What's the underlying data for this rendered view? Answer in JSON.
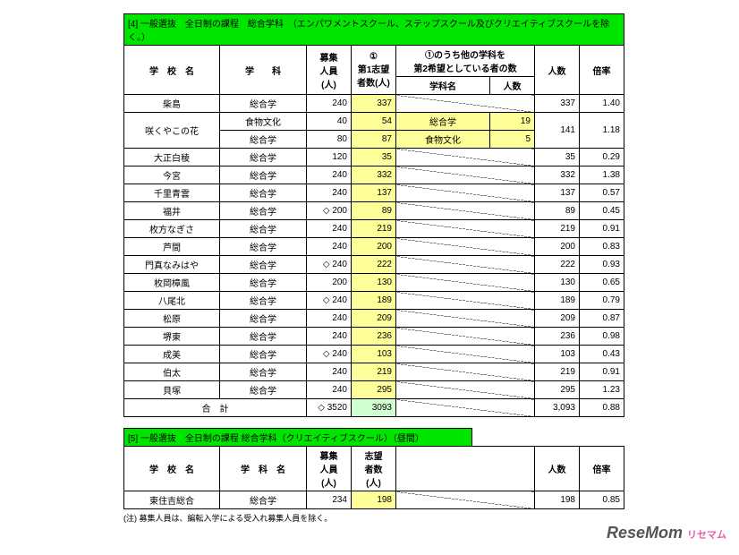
{
  "table4": {
    "title": "[4] 一般選抜　全日制の課程　総合学科　（エンパワメントスクール、ステップスクール及びクリエイティブスクールを除く。）",
    "headers": {
      "school": "学　校　名",
      "dept": "学　　科",
      "capacity": "募集\n人員\n(人)",
      "first": "①\n第1志望\n者数(人)",
      "other_top": "①のうち他の学科を\n第2希望としている者の数",
      "other_dept": "学科名",
      "other_count": "人数",
      "count": "人数",
      "rate": "倍率"
    },
    "rows": [
      {
        "school": "柴島",
        "dept": "総合学",
        "cap": "240",
        "first": "337",
        "od": "",
        "oc": "",
        "count": "337",
        "rate": "1.40",
        "diag": true
      },
      {
        "school": "咲くやこの花",
        "rowspan": 2,
        "dept": "食物文化",
        "cap": "40",
        "first": "54",
        "od": "総合学",
        "oc": "19",
        "count": "141",
        "crows": 2,
        "rate": "1.18",
        "rrows": 2
      },
      {
        "dept": "総合学",
        "cap": "80",
        "first": "87",
        "od": "食物文化",
        "oc": "5"
      },
      {
        "school": "大正白稜",
        "dept": "総合学",
        "cap": "120",
        "first": "35",
        "od": "",
        "oc": "",
        "count": "35",
        "rate": "0.29",
        "diag": true
      },
      {
        "school": "今宮",
        "dept": "総合学",
        "cap": "240",
        "first": "332",
        "od": "",
        "oc": "",
        "count": "332",
        "rate": "1.38",
        "diag": true
      },
      {
        "school": "千里青雲",
        "dept": "総合学",
        "cap": "240",
        "first": "137",
        "od": "",
        "oc": "",
        "count": "137",
        "rate": "0.57",
        "diag": true
      },
      {
        "school": "福井",
        "dept": "総合学",
        "cap": "◇ 200",
        "first": "89",
        "od": "",
        "oc": "",
        "count": "89",
        "rate": "0.45",
        "diag": true
      },
      {
        "school": "枚方なぎさ",
        "dept": "総合学",
        "cap": "240",
        "first": "219",
        "od": "",
        "oc": "",
        "count": "219",
        "rate": "0.91",
        "diag": true
      },
      {
        "school": "芦間",
        "dept": "総合学",
        "cap": "240",
        "first": "200",
        "od": "",
        "oc": "",
        "count": "200",
        "rate": "0.83",
        "diag": true
      },
      {
        "school": "門真なみはや",
        "dept": "総合学",
        "cap": "◇ 240",
        "first": "222",
        "od": "",
        "oc": "",
        "count": "222",
        "rate": "0.93",
        "diag": true
      },
      {
        "school": "枚岡樟風",
        "dept": "総合学",
        "cap": "200",
        "first": "130",
        "od": "",
        "oc": "",
        "count": "130",
        "rate": "0.65",
        "diag": true
      },
      {
        "school": "八尾北",
        "dept": "総合学",
        "cap": "◇ 240",
        "first": "189",
        "od": "",
        "oc": "",
        "count": "189",
        "rate": "0.79",
        "diag": true
      },
      {
        "school": "松原",
        "dept": "総合学",
        "cap": "240",
        "first": "209",
        "od": "",
        "oc": "",
        "count": "209",
        "rate": "0.87",
        "diag": true
      },
      {
        "school": "堺東",
        "dept": "総合学",
        "cap": "240",
        "first": "236",
        "od": "",
        "oc": "",
        "count": "236",
        "rate": "0.98",
        "diag": true
      },
      {
        "school": "成美",
        "dept": "総合学",
        "cap": "◇ 240",
        "first": "103",
        "od": "",
        "oc": "",
        "count": "103",
        "rate": "0.43",
        "diag": true
      },
      {
        "school": "伯太",
        "dept": "総合学",
        "cap": "240",
        "first": "219",
        "od": "",
        "oc": "",
        "count": "219",
        "rate": "0.91",
        "diag": true
      },
      {
        "school": "貝塚",
        "dept": "総合学",
        "cap": "240",
        "first": "295",
        "od": "",
        "oc": "",
        "count": "295",
        "rate": "1.23",
        "diag": true
      }
    ],
    "total": {
      "label": "合　計",
      "cap": "◇ 3520",
      "first": "3093",
      "count": "3,093",
      "rate": "0.88"
    }
  },
  "table5": {
    "title": "[5] 一般選抜　全日制の課程  総合学科（クリエイティブスクール）（昼間）",
    "headers": {
      "school": "学　校　名",
      "dept": "学　科　名",
      "cap": "募集\n人員\n(人)",
      "first": "志望\n者数\n(人)",
      "count": "人数",
      "rate": "倍率"
    },
    "rows": [
      {
        "school": "東住吉総合",
        "dept": "総合学",
        "cap": "234",
        "first": "198",
        "count": "198",
        "rate": "0.85"
      }
    ]
  },
  "note": "(注) 募集人員は、編転入学による受入れ募集人員を除く。",
  "brand": "ReseMom",
  "brand_sub": "リセマム"
}
